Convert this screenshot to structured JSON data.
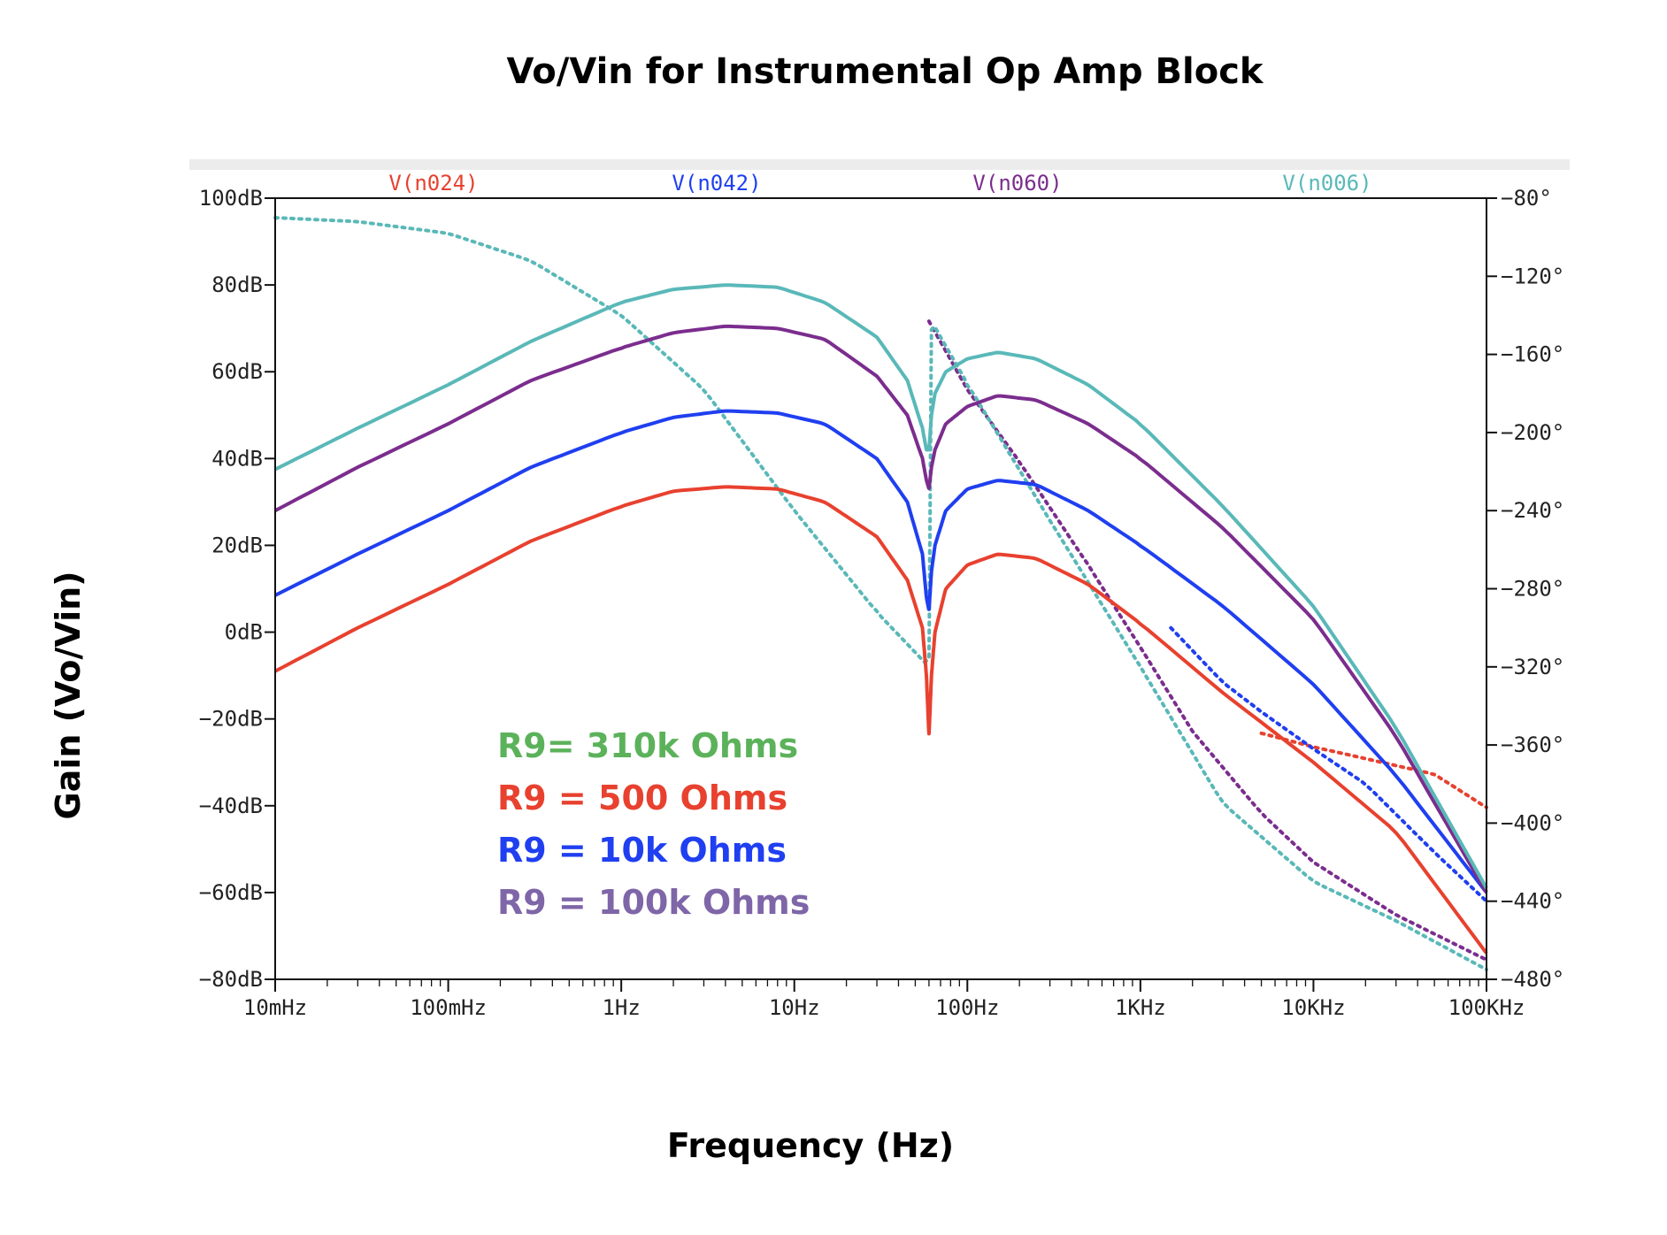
{
  "colors": {
    "red": "#e8412f",
    "blue": "#1f3ff0",
    "purple": "#7b2d8e",
    "teal": "#5ab8b8",
    "green": "#5bb25a",
    "lavender": "#7e66a8"
  },
  "chart_data": {
    "type": "line",
    "title": "Vo/Vin for Instrumental Op Amp Block",
    "xlabel": "Frequency (Hz)",
    "ylabel": "Gain (Vo/Vin)",
    "x_scale": "log",
    "xlim": [
      0.01,
      100000
    ],
    "ylim": [
      -80,
      100
    ],
    "y2lim": [
      -480,
      -80
    ],
    "x_ticks": [
      {
        "value": 0.01,
        "label": "10mHz"
      },
      {
        "value": 0.1,
        "label": "100mHz"
      },
      {
        "value": 1,
        "label": "1Hz"
      },
      {
        "value": 10,
        "label": "10Hz"
      },
      {
        "value": 100,
        "label": "100Hz"
      },
      {
        "value": 1000,
        "label": "1KHz"
      },
      {
        "value": 10000,
        "label": "10KHz"
      },
      {
        "value": 100000,
        "label": "100KHz"
      }
    ],
    "y_ticks": [
      {
        "value": 100,
        "label": "100dB"
      },
      {
        "value": 80,
        "label": "80dB"
      },
      {
        "value": 60,
        "label": "60dB"
      },
      {
        "value": 40,
        "label": "40dB"
      },
      {
        "value": 20,
        "label": "20dB"
      },
      {
        "value": 0,
        "label": "0dB"
      },
      {
        "value": -20,
        "label": "−20dB"
      },
      {
        "value": -40,
        "label": "−40dB"
      },
      {
        "value": -60,
        "label": "−60dB"
      },
      {
        "value": -80,
        "label": "−80dB"
      }
    ],
    "y2_ticks": [
      {
        "value": -80,
        "label": "−80°"
      },
      {
        "value": -120,
        "label": "−120°"
      },
      {
        "value": -160,
        "label": "−160°"
      },
      {
        "value": -200,
        "label": "−200°"
      },
      {
        "value": -240,
        "label": "−240°"
      },
      {
        "value": -280,
        "label": "−280°"
      },
      {
        "value": -320,
        "label": "−320°"
      },
      {
        "value": -360,
        "label": "−360°"
      },
      {
        "value": -400,
        "label": "−400°"
      },
      {
        "value": -440,
        "label": "−440°"
      },
      {
        "value": -480,
        "label": "−480°"
      }
    ],
    "traces": [
      {
        "name": "V(n024)",
        "color": "#e8412f",
        "magnitude_db": [
          [
            0.01,
            -9
          ],
          [
            0.03,
            1
          ],
          [
            0.1,
            11
          ],
          [
            0.3,
            21
          ],
          [
            1,
            29
          ],
          [
            2,
            32.5
          ],
          [
            4,
            33.5
          ],
          [
            8,
            33
          ],
          [
            15,
            30
          ],
          [
            30,
            22
          ],
          [
            45,
            12
          ],
          [
            55,
            1
          ],
          [
            58,
            -10
          ],
          [
            60,
            -24
          ],
          [
            62,
            -10
          ],
          [
            65,
            0
          ],
          [
            75,
            10
          ],
          [
            100,
            15.5
          ],
          [
            150,
            18
          ],
          [
            250,
            17
          ],
          [
            500,
            11
          ],
          [
            1000,
            2
          ],
          [
            3000,
            -14
          ],
          [
            10000,
            -30
          ],
          [
            30000,
            -46
          ],
          [
            100000,
            -74
          ]
        ],
        "phase_deg": [
          [
            5000,
            -354
          ],
          [
            10000,
            -361
          ],
          [
            20000,
            -367
          ],
          [
            50000,
            -375
          ],
          [
            100000,
            -392
          ]
        ]
      },
      {
        "name": "V(n042)",
        "color": "#1f3ff0",
        "magnitude_db": [
          [
            0.01,
            8.5
          ],
          [
            0.03,
            18
          ],
          [
            0.1,
            28
          ],
          [
            0.3,
            38
          ],
          [
            1,
            46
          ],
          [
            2,
            49.5
          ],
          [
            4,
            51
          ],
          [
            8,
            50.5
          ],
          [
            15,
            48
          ],
          [
            30,
            40
          ],
          [
            45,
            30
          ],
          [
            55,
            18
          ],
          [
            58,
            8
          ],
          [
            60,
            5
          ],
          [
            62,
            14
          ],
          [
            65,
            20
          ],
          [
            75,
            28
          ],
          [
            100,
            33
          ],
          [
            150,
            35
          ],
          [
            250,
            34
          ],
          [
            500,
            28
          ],
          [
            1000,
            20
          ],
          [
            3000,
            6
          ],
          [
            10000,
            -12
          ],
          [
            30000,
            -33
          ],
          [
            100000,
            -60
          ]
        ],
        "phase_deg": [
          [
            1500,
            -300
          ],
          [
            3000,
            -328
          ],
          [
            5000,
            -343
          ],
          [
            10000,
            -362
          ],
          [
            20000,
            -380
          ],
          [
            50000,
            -415
          ],
          [
            100000,
            -440
          ]
        ]
      },
      {
        "name": "V(n060)",
        "color": "#7b2d8e",
        "magnitude_db": [
          [
            0.01,
            28
          ],
          [
            0.03,
            38
          ],
          [
            0.1,
            48
          ],
          [
            0.3,
            58
          ],
          [
            1,
            65.5
          ],
          [
            2,
            69
          ],
          [
            4,
            70.5
          ],
          [
            8,
            70
          ],
          [
            15,
            67.5
          ],
          [
            30,
            59
          ],
          [
            45,
            50
          ],
          [
            55,
            40
          ],
          [
            58,
            35
          ],
          [
            60,
            33
          ],
          [
            62,
            38
          ],
          [
            65,
            42
          ],
          [
            75,
            48
          ],
          [
            100,
            52
          ],
          [
            150,
            54.5
          ],
          [
            250,
            53.5
          ],
          [
            500,
            48
          ],
          [
            1000,
            40
          ],
          [
            3000,
            24
          ],
          [
            10000,
            3
          ],
          [
            30000,
            -24
          ],
          [
            100000,
            -60
          ]
        ],
        "phase_deg": [
          [
            60,
            -143
          ],
          [
            100,
            -178
          ],
          [
            200,
            -215
          ],
          [
            500,
            -268
          ],
          [
            1000,
            -310
          ],
          [
            2000,
            -353
          ],
          [
            5000,
            -395
          ],
          [
            10000,
            -420
          ],
          [
            30000,
            -447
          ],
          [
            100000,
            -470
          ]
        ]
      },
      {
        "name": "V(n006)",
        "color": "#5ab8b8",
        "magnitude_db": [
          [
            0.01,
            37.5
          ],
          [
            0.03,
            47
          ],
          [
            0.1,
            57
          ],
          [
            0.3,
            67
          ],
          [
            1,
            76
          ],
          [
            2,
            79
          ],
          [
            4,
            80
          ],
          [
            8,
            79.5
          ],
          [
            15,
            76
          ],
          [
            30,
            68
          ],
          [
            45,
            58
          ],
          [
            55,
            47
          ],
          [
            58,
            42
          ],
          [
            60,
            42
          ],
          [
            62,
            50
          ],
          [
            65,
            55
          ],
          [
            75,
            60
          ],
          [
            100,
            63
          ],
          [
            150,
            64.5
          ],
          [
            250,
            63
          ],
          [
            500,
            57
          ],
          [
            1000,
            48
          ],
          [
            3000,
            29
          ],
          [
            10000,
            6
          ],
          [
            30000,
            -22
          ],
          [
            100000,
            -59
          ]
        ],
        "phase_deg": [
          [
            0.01,
            -90
          ],
          [
            0.03,
            -92
          ],
          [
            0.1,
            -98
          ],
          [
            0.3,
            -112
          ],
          [
            1,
            -140
          ],
          [
            3,
            -178
          ],
          [
            10,
            -240
          ],
          [
            30,
            -292
          ],
          [
            60,
            -320
          ],
          [
            62,
            -143
          ],
          [
            100,
            -175
          ],
          [
            300,
            -245
          ],
          [
            1000,
            -320
          ],
          [
            3000,
            -390
          ],
          [
            10000,
            -430
          ],
          [
            30000,
            -450
          ],
          [
            100000,
            -475
          ]
        ]
      }
    ],
    "annotations": [
      {
        "text": "R9= 310k Ohms",
        "color": "#5bb25a"
      },
      {
        "text": "R9 = 500 Ohms",
        "color": "#e8412f"
      },
      {
        "text": "R9 = 10k Ohms",
        "color": "#1f3ff0"
      },
      {
        "text": "R9 = 100k Ohms",
        "color": "#7e66a8"
      }
    ]
  }
}
